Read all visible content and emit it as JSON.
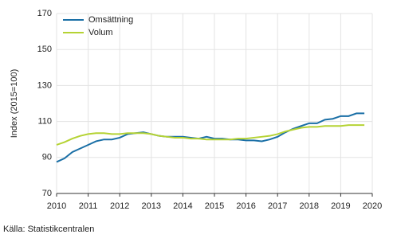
{
  "chart_data": {
    "type": "line",
    "y_label": "Index (2015=100)",
    "source": "Källa: Statistikcentralen",
    "x": [
      2010,
      2010.25,
      2010.5,
      2010.75,
      2011,
      2011.25,
      2011.5,
      2011.75,
      2012,
      2012.25,
      2012.5,
      2012.75,
      2013,
      2013.25,
      2013.5,
      2013.75,
      2014,
      2014.25,
      2014.5,
      2014.75,
      2015,
      2015.25,
      2015.5,
      2015.75,
      2016,
      2016.25,
      2016.5,
      2016.75,
      2017,
      2017.25,
      2017.5,
      2017.75,
      2018,
      2018.25,
      2018.5,
      2018.75,
      2019,
      2019.25,
      2019.5,
      2019.75
    ],
    "series": [
      {
        "name": "Omsättning",
        "color": "#1a6fa6",
        "values": [
          87.5,
          89.5,
          93,
          95,
          97,
          99,
          100,
          100,
          101,
          103,
          103.5,
          104,
          103,
          102,
          101.5,
          101.5,
          101.5,
          101,
          100.5,
          101.5,
          100.5,
          100.5,
          100,
          100,
          99.5,
          99.5,
          99,
          100,
          101.5,
          104,
          106,
          107.5,
          109,
          109,
          111,
          111.5,
          113,
          113,
          114.5,
          114.5
        ]
      },
      {
        "name": "Volum",
        "color": "#b5d334",
        "values": [
          97,
          98.5,
          100.5,
          102,
          103,
          103.5,
          103.5,
          103,
          103,
          103.5,
          103.5,
          103.5,
          103,
          102,
          101.5,
          101,
          101,
          100.5,
          100.5,
          100,
          100,
          100,
          100,
          100.5,
          100.5,
          101,
          101.5,
          102,
          103,
          104.5,
          105.5,
          106.5,
          107,
          107,
          107.5,
          107.5,
          107.5,
          108,
          108,
          108
        ]
      }
    ],
    "xlim": [
      2010,
      2020
    ],
    "xticks": [
      2010,
      2011,
      2012,
      2013,
      2014,
      2015,
      2016,
      2017,
      2018,
      2019,
      2020
    ],
    "ylim": [
      70,
      170
    ],
    "yticks": [
      70,
      90,
      110,
      130,
      150,
      170
    ],
    "grid": true,
    "legend": "top-left"
  }
}
